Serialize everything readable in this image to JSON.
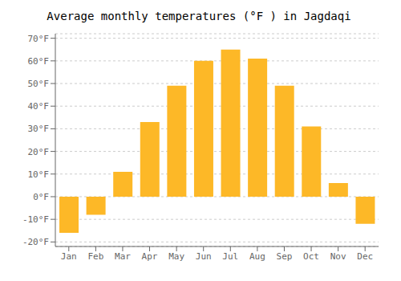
{
  "chart_data": {
    "type": "bar",
    "title": "Average monthly temperatures (°F ) in Jagdaqi",
    "categories": [
      "Jan",
      "Feb",
      "Mar",
      "Apr",
      "May",
      "Jun",
      "Jul",
      "Aug",
      "Sep",
      "Oct",
      "Nov",
      "Dec"
    ],
    "values": [
      -16,
      -8,
      11,
      33,
      49,
      60,
      65,
      61,
      49,
      31,
      6,
      -12
    ],
    "color": "#FDB827",
    "ylim": [
      -22,
      72
    ],
    "yticks": [
      {
        "value": -20,
        "label": "-20°F"
      },
      {
        "value": -10,
        "label": "-10°F"
      },
      {
        "value": 0,
        "label": "0°F"
      },
      {
        "value": 10,
        "label": "10°F"
      },
      {
        "value": 20,
        "label": "20°F"
      },
      {
        "value": 30,
        "label": "30°F"
      },
      {
        "value": 40,
        "label": "40°F"
      },
      {
        "value": 50,
        "label": "50°F"
      },
      {
        "value": 60,
        "label": "60°F"
      },
      {
        "value": 70,
        "label": "70°F"
      }
    ],
    "grid": true
  }
}
